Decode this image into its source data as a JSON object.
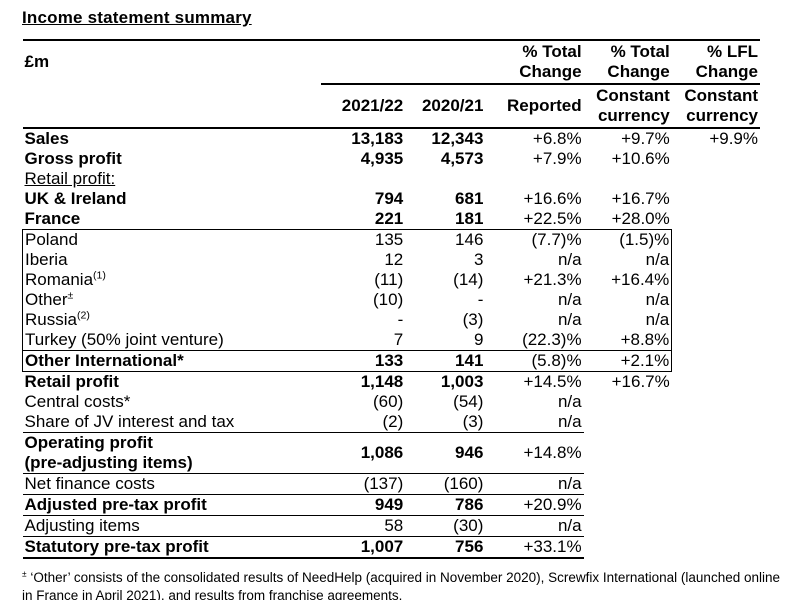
{
  "title": "Income statement summary",
  "table": {
    "unit_label": "£m",
    "header_groups": {
      "reported": "% Total\nChange",
      "constant": "% Total\nChange",
      "lfl": "% LFL\nChange"
    },
    "subheaders": {
      "fy_2021_22": "2021/22",
      "fy_2020_21": "2020/21",
      "reported": "Reported",
      "constant_currency_1": "Constant\ncurrency",
      "constant_currency_2": "Constant\ncurrency"
    },
    "rows": [
      {
        "label": "Sales",
        "v1": "13,183",
        "v2": "12,343",
        "rep": "+6.8%",
        "cc": "+9.7%",
        "lfl": "+9.9%",
        "classes": [
          "bold"
        ]
      },
      {
        "label": "Gross profit",
        "v1": "4,935",
        "v2": "4,573",
        "rep": "+7.9%",
        "cc": "+10.6%",
        "lfl": "",
        "classes": [
          "bold"
        ]
      },
      {
        "label": "Retail profit:",
        "v1": "",
        "v2": "",
        "rep": "",
        "cc": "",
        "lfl": "",
        "underline": true,
        "classes": []
      },
      {
        "label": "UK & Ireland",
        "v1": "794",
        "v2": "681",
        "rep": "+16.6%",
        "cc": "+16.7%",
        "lfl": "",
        "classes": [
          "bold"
        ]
      },
      {
        "label": "France",
        "v1": "221",
        "v2": "181",
        "rep": "+22.5%",
        "cc": "+28.0%",
        "lfl": "",
        "classes": [
          "bold"
        ]
      },
      {
        "label": "Poland",
        "v1": "135",
        "v2": "146",
        "rep": "(7.7)%",
        "cc": "(1.5)%",
        "lfl": "",
        "classes": [
          "boxed",
          "box-top"
        ]
      },
      {
        "label": "Iberia",
        "v1": "12",
        "v2": "3",
        "rep": "n/a",
        "cc": "n/a",
        "lfl": "",
        "classes": [
          "boxed"
        ]
      },
      {
        "label": "Romania",
        "sup": "(1)",
        "v1": "(11)",
        "v2": "(14)",
        "rep": "+21.3%",
        "cc": "+16.4%",
        "lfl": "",
        "classes": [
          "boxed"
        ]
      },
      {
        "label": "Other",
        "sup": "±",
        "v1": "(10)",
        "v2": "-",
        "rep": "n/a",
        "cc": "n/a",
        "lfl": "",
        "classes": [
          "boxed"
        ]
      },
      {
        "label": "Russia",
        "sup": "(2)",
        "v1": "-",
        "v2": "(3)",
        "rep": "n/a",
        "cc": "n/a",
        "lfl": "",
        "classes": [
          "boxed"
        ]
      },
      {
        "label": "Turkey (50% joint venture)",
        "v1": "7",
        "v2": "9",
        "rep": "(22.3)%",
        "cc": "+8.8%",
        "lfl": "",
        "classes": [
          "boxed",
          "box-bottom"
        ]
      },
      {
        "label": "Other International*",
        "v1": "133",
        "v2": "141",
        "rep": "(5.8)%",
        "cc": "+2.1%",
        "lfl": "",
        "classes": [
          "bold",
          "boxed",
          "box-bottom"
        ]
      },
      {
        "label": "Retail profit",
        "v1": "1,148",
        "v2": "1,003",
        "rep": "+14.5%",
        "cc": "+16.7%",
        "lfl": "",
        "classes": [
          "bold"
        ]
      },
      {
        "label": "Central costs*",
        "v1": "(60)",
        "v2": "(54)",
        "rep": "n/a",
        "cc": "",
        "lfl": "",
        "classes": []
      },
      {
        "label": "Share of JV interest and tax",
        "v1": "(2)",
        "v2": "(3)",
        "rep": "n/a",
        "cc": "",
        "lfl": "",
        "classes": [
          "rule-below"
        ]
      },
      {
        "label": "Operating profit\n(pre-adjusting items)",
        "v1": "1,086",
        "v2": "946",
        "rep": "+14.8%",
        "cc": "",
        "lfl": "",
        "classes": [
          "bold",
          "rule-below",
          "tall"
        ]
      },
      {
        "label": "Net finance costs",
        "v1": "(137)",
        "v2": "(160)",
        "rep": "n/a",
        "cc": "",
        "lfl": "",
        "classes": [
          "rule-below"
        ]
      },
      {
        "label": "Adjusted pre-tax profit",
        "v1": "949",
        "v2": "786",
        "rep": "+20.9%",
        "cc": "",
        "lfl": "",
        "classes": [
          "bold",
          "rule-below"
        ]
      },
      {
        "label": "Adjusting items",
        "v1": "58",
        "v2": "(30)",
        "rep": "n/a",
        "cc": "",
        "lfl": "",
        "classes": [
          "rule-below"
        ]
      },
      {
        "label": "Statutory pre-tax profit",
        "v1": "1,007",
        "v2": "756",
        "rep": "+33.1%",
        "cc": "",
        "lfl": "",
        "classes": [
          "bold",
          "rule-thick"
        ]
      }
    ]
  },
  "footnote": {
    "marker": "±",
    "text": " ‘Other’ consists of the consolidated results of NeedHelp (acquired in November 2020), Screwfix International (launched online in France in April 2021), and results from franchise agreements."
  }
}
